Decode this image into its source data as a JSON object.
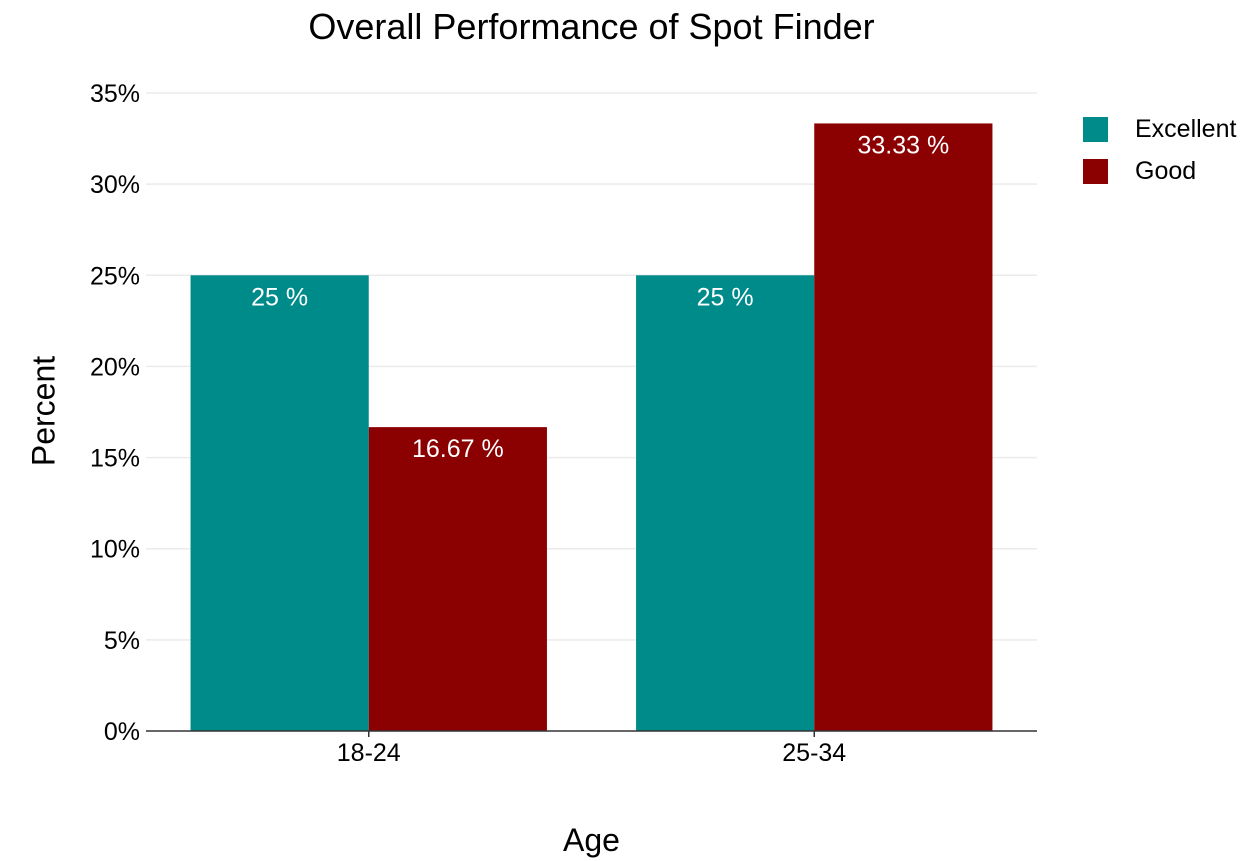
{
  "chart_data": {
    "type": "bar",
    "title": "Overall Performance of Spot Finder",
    "xlabel": "Age",
    "ylabel": "Percent",
    "categories": [
      "18-24",
      "25-34"
    ],
    "series": [
      {
        "name": "Excellent",
        "color": "#008b8b",
        "values": [
          25,
          25
        ],
        "labels": [
          "25 %",
          "25 %"
        ]
      },
      {
        "name": "Good",
        "color": "#8b0000",
        "values": [
          16.67,
          33.33
        ],
        "labels": [
          "16.67 %",
          "33.33 %"
        ]
      }
    ],
    "ylim": [
      0,
      35
    ],
    "yticks": [
      0,
      5,
      10,
      15,
      20,
      25,
      30,
      35
    ],
    "ytick_labels": [
      "0%",
      "5%",
      "10%",
      "15%",
      "20%",
      "25%",
      "30%",
      "35%"
    ],
    "grid": true,
    "legend_position": "right"
  }
}
